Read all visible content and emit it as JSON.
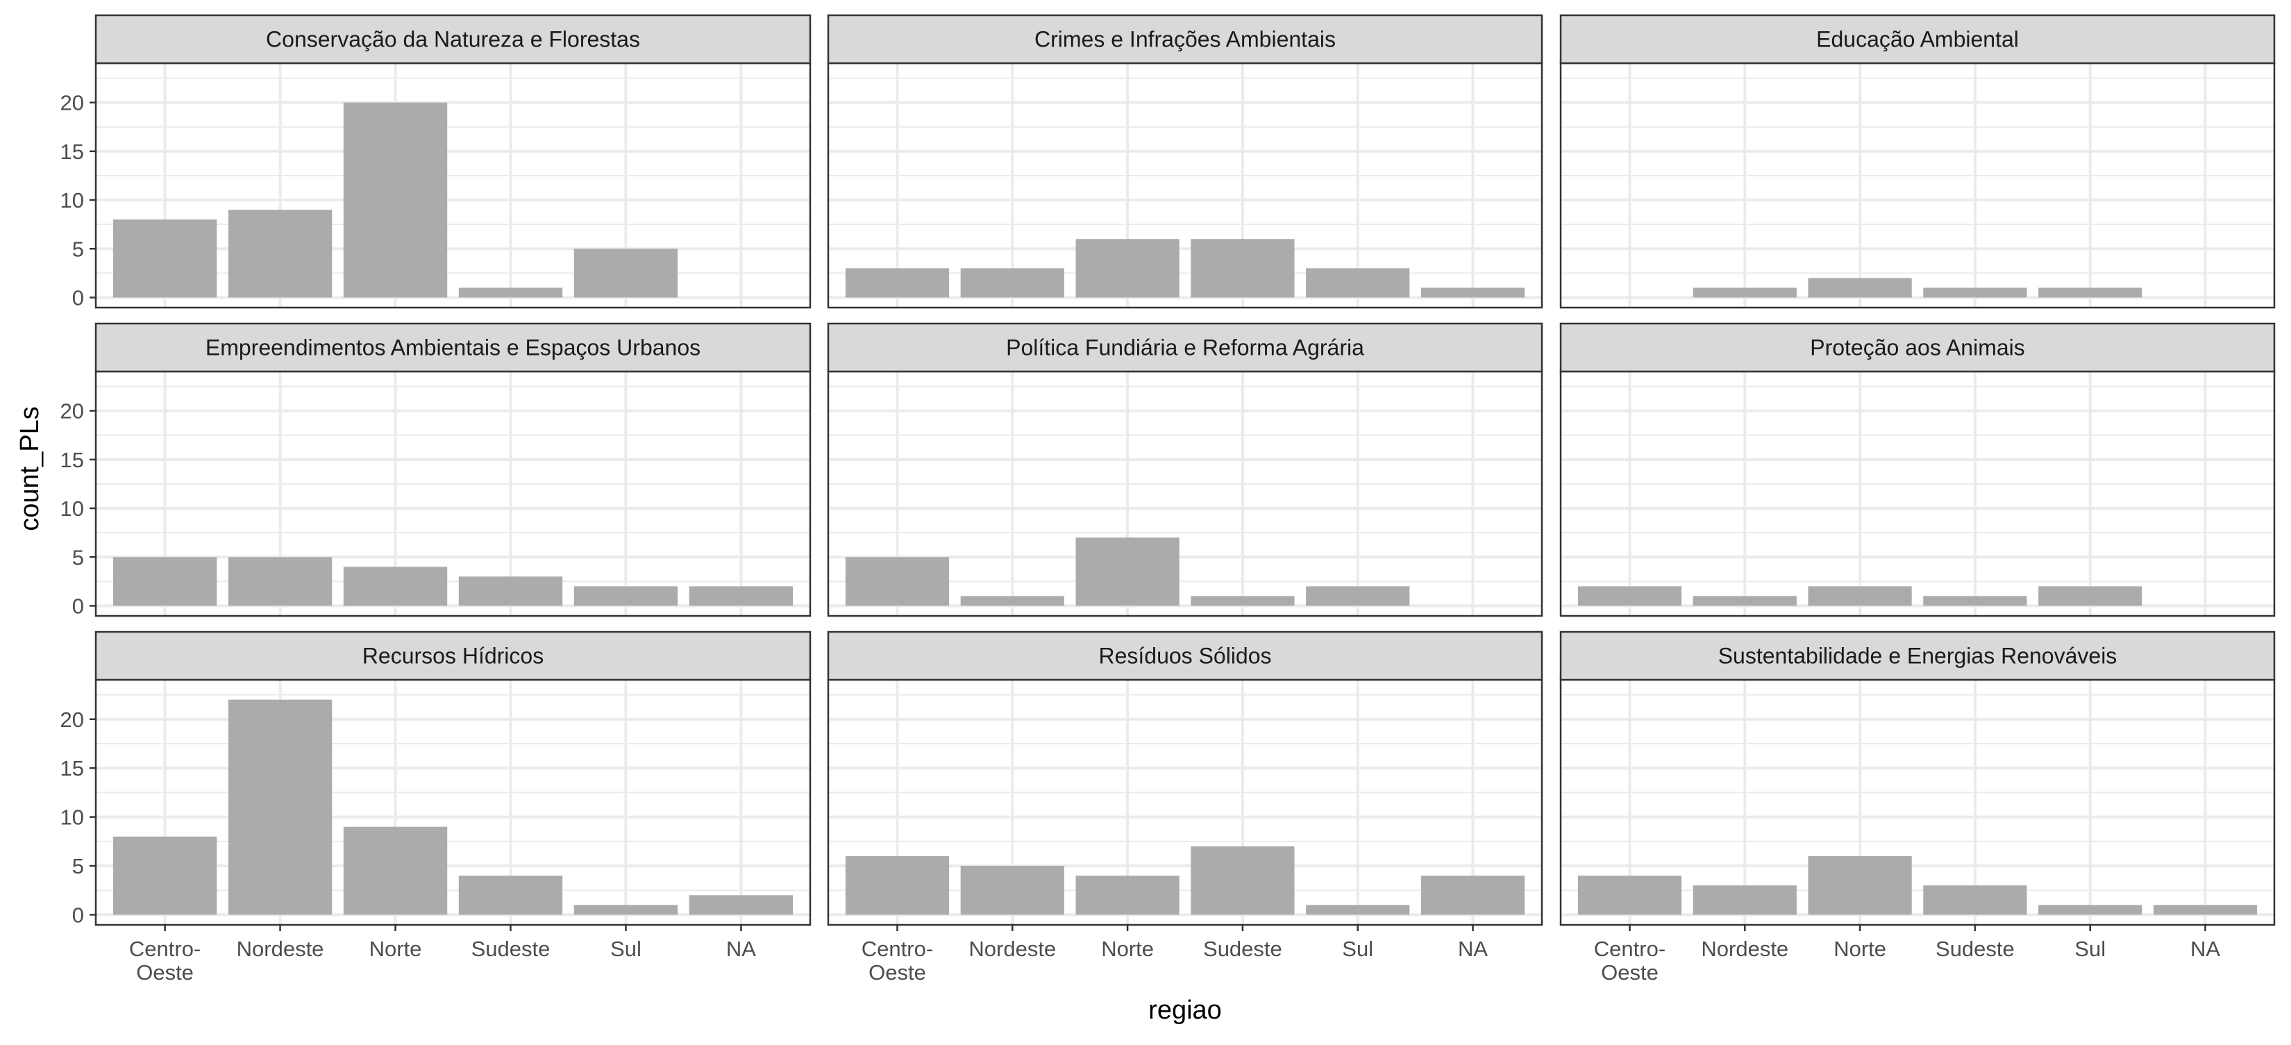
{
  "chart_data": {
    "type": "bar",
    "xlabel": "regiao",
    "ylabel": "count_PLs",
    "ylim": [
      0,
      23
    ],
    "yticks": [
      0,
      5,
      10,
      15,
      20
    ],
    "grid": true,
    "bar_color": "#ababab",
    "strip_color": "#d9d9d9",
    "categories": [
      "Centro-\nOeste",
      "Nordeste",
      "Norte",
      "Sudeste",
      "Sul",
      "NA"
    ],
    "facets": [
      {
        "title": "Conservação da Natureza e Florestas",
        "values": [
          8,
          9,
          20,
          1,
          5,
          null
        ]
      },
      {
        "title": "Crimes e Infrações Ambientais",
        "values": [
          3,
          3,
          6,
          6,
          3,
          1
        ]
      },
      {
        "title": "Educação Ambiental",
        "values": [
          null,
          1,
          2,
          1,
          1,
          null
        ]
      },
      {
        "title": "Empreendimentos Ambientais e Espaços Urbanos",
        "values": [
          5,
          5,
          4,
          3,
          2,
          2
        ]
      },
      {
        "title": "Política Fundiária e Reforma Agrária",
        "values": [
          5,
          1,
          7,
          1,
          2,
          null
        ]
      },
      {
        "title": "Proteção aos Animais",
        "values": [
          2,
          1,
          2,
          1,
          2,
          null
        ]
      },
      {
        "title": "Recursos Hídricos",
        "values": [
          8,
          22,
          9,
          4,
          1,
          2
        ]
      },
      {
        "title": "Resíduos Sólidos",
        "values": [
          6,
          5,
          4,
          7,
          1,
          4
        ]
      },
      {
        "title": "Sustentabilidade e Energias Renováveis",
        "values": [
          4,
          3,
          6,
          3,
          1,
          1
        ]
      }
    ]
  }
}
